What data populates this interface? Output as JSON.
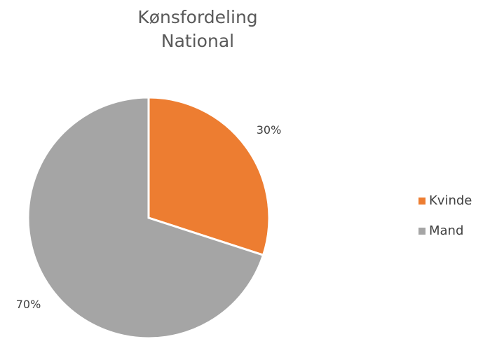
{
  "chart_data": {
    "type": "pie",
    "title": [
      "Kønsfordeling",
      "National"
    ],
    "categories": [
      "Kvinde",
      "Mand"
    ],
    "values": [
      30,
      70
    ],
    "value_labels": [
      "30%",
      "70%"
    ],
    "colors": [
      "#ed7d31",
      "#a5a5a5"
    ],
    "legend": "right"
  }
}
